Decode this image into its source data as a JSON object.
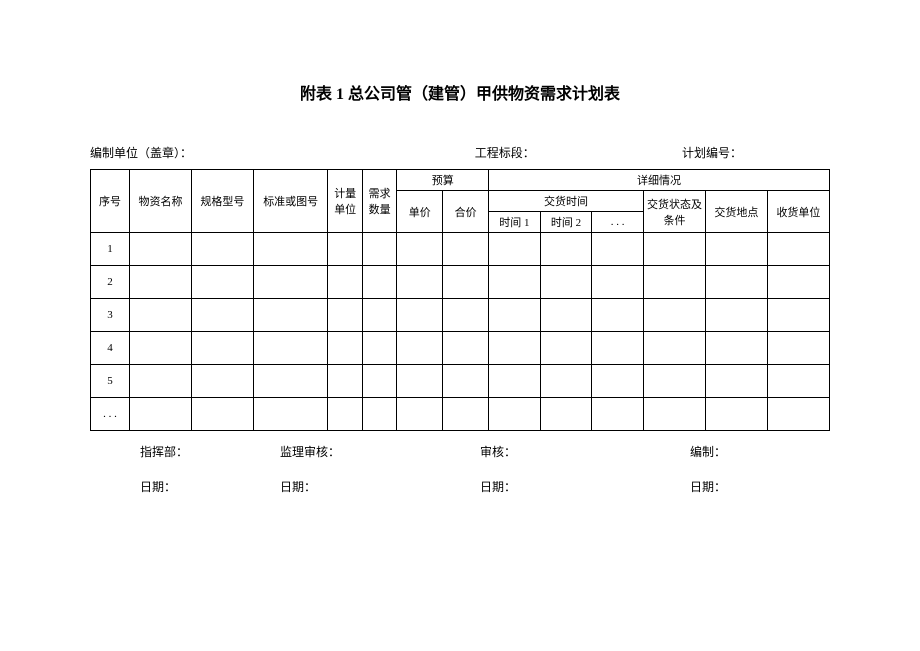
{
  "title": "附表 1 总公司管（建管）甲供物资需求计划表",
  "header": {
    "org_label": "编制单位（盖章）：",
    "section_label": "工程标段：",
    "plan_no_label": "计划编号："
  },
  "thead": {
    "seq": "序号",
    "material_name": "物资名称",
    "spec": "规格型号",
    "standard": "标准或图号",
    "unit": "计量单位",
    "qty": "需求数量",
    "budget": "预算",
    "unit_price": "单价",
    "total_price": "合价",
    "detail": "详细情况",
    "delivery_time": "交货时间",
    "time1": "时间 1",
    "time2": "时间 2",
    "time_etc": ". . .",
    "delivery_status": "交货状态及条件",
    "delivery_location": "交货地点",
    "receiver": "收货单位"
  },
  "rows": [
    "1",
    "2",
    "3",
    "4",
    "5",
    ". . ."
  ],
  "footer": {
    "command": "指挥部：",
    "supervise": "监理审核：",
    "review": "审核：",
    "compile": "编制：",
    "date": "日期："
  }
}
